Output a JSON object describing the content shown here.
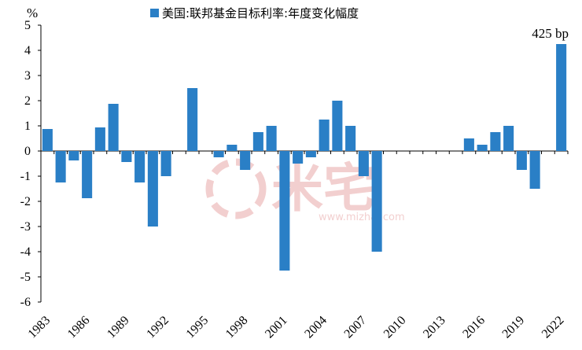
{
  "chart_data": {
    "type": "bar",
    "unit_label": "%",
    "legend": "美国:联邦基金目标利率:年度变化幅度",
    "annotation": "425 bp",
    "annotation_year": 2022,
    "color": "#2a7fc6",
    "ylim": [
      -6,
      5
    ],
    "yticks": [
      -6,
      -5,
      -4,
      -3,
      -2,
      -1,
      0,
      1,
      2,
      3,
      4,
      5
    ],
    "xtick_labels": [
      "1983",
      "1986",
      "1989",
      "1992",
      "1995",
      "1998",
      "2001",
      "2004",
      "2007",
      "2010",
      "2013",
      "2016",
      "2019",
      "2022"
    ],
    "categories": [
      1983,
      1984,
      1985,
      1986,
      1987,
      1988,
      1989,
      1990,
      1991,
      1992,
      1993,
      1994,
      1995,
      1996,
      1997,
      1998,
      1999,
      2000,
      2001,
      2002,
      2003,
      2004,
      2005,
      2006,
      2007,
      2008,
      2009,
      2010,
      2011,
      2012,
      2013,
      2014,
      2015,
      2016,
      2017,
      2018,
      2019,
      2020,
      2021,
      2022
    ],
    "values": [
      0.875,
      -1.25,
      -0.375,
      -1.875,
      0.9375,
      1.875,
      -0.4375,
      -1.25,
      -3.0,
      -1.0,
      0,
      2.5,
      0,
      -0.25,
      0.25,
      -0.75,
      0.75,
      1.0,
      -4.75,
      -0.5,
      -0.25,
      1.25,
      2.0,
      1.0,
      -1.0,
      -4.0,
      0,
      0,
      0,
      0,
      0,
      0,
      0.5,
      0.25,
      0.75,
      1.0,
      -0.75,
      -1.5,
      0,
      4.25
    ]
  },
  "watermark": {
    "text": "米宅",
    "url": "www.mizhai.com"
  }
}
